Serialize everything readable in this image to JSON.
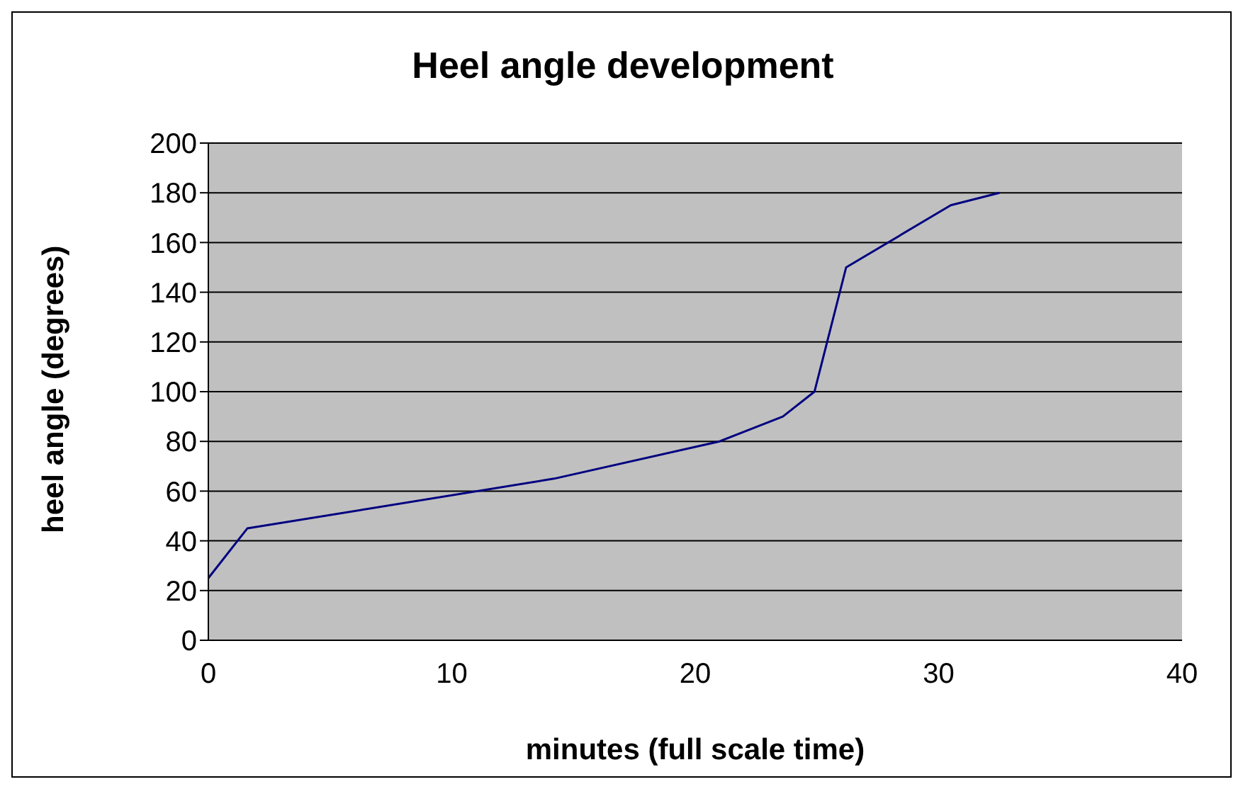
{
  "chart_data": {
    "type": "line",
    "title": "Heel angle development",
    "xlabel": "minutes (full scale time)",
    "ylabel": "heel angle (degrees)",
    "x": [
      0,
      1.6,
      14.2,
      21,
      23.6,
      24.9,
      26.2,
      30.5,
      32.5
    ],
    "series": [
      {
        "color": "#000080",
        "values": [
          25,
          45,
          65,
          80,
          90,
          100,
          150,
          175,
          180
        ]
      }
    ],
    "xlim": [
      0,
      40
    ],
    "xticks": [
      0,
      10,
      20,
      30,
      40
    ],
    "ylim": [
      0,
      200
    ],
    "yticks": [
      0,
      20,
      40,
      60,
      80,
      100,
      120,
      140,
      160,
      180,
      200
    ],
    "grid": "y",
    "marker": "none",
    "line_style": "solid"
  }
}
